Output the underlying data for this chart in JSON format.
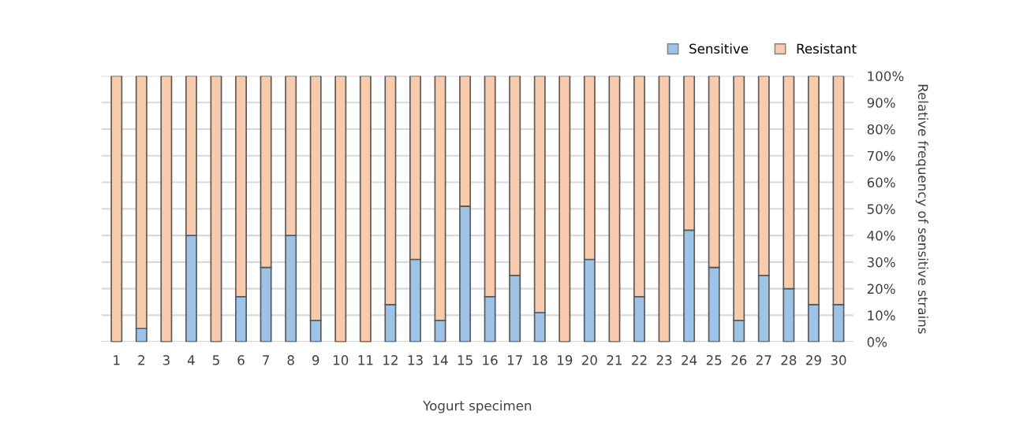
{
  "chart_data": {
    "type": "bar",
    "stacked": true,
    "categories": [
      "1",
      "2",
      "3",
      "4",
      "5",
      "6",
      "7",
      "8",
      "9",
      "10",
      "11",
      "12",
      "13",
      "14",
      "15",
      "16",
      "17",
      "18",
      "19",
      "20",
      "21",
      "22",
      "23",
      "24",
      "25",
      "26",
      "27",
      "28",
      "29",
      "30"
    ],
    "series": [
      {
        "name": "Sensitive",
        "color": "#9dc3e6",
        "values": [
          0,
          5,
          0,
          40,
          0,
          17,
          28,
          40,
          8,
          0,
          0,
          14,
          31,
          8,
          51,
          17,
          25,
          11,
          0,
          31,
          0,
          17,
          0,
          42,
          28,
          8,
          25,
          20,
          14,
          14
        ]
      },
      {
        "name": "Resistant",
        "color": "#f8cbad",
        "values": [
          100,
          95,
          100,
          60,
          100,
          83,
          72,
          60,
          92,
          100,
          100,
          86,
          69,
          92,
          49,
          83,
          75,
          89,
          100,
          69,
          100,
          83,
          100,
          58,
          72,
          92,
          75,
          80,
          86,
          86
        ]
      }
    ],
    "xlabel": "Yogurt specimen",
    "ylabel": "Relative frequency of sensitive strains",
    "ylim": [
      0,
      100
    ],
    "yticks": [
      {
        "value": 0,
        "label": "0%"
      },
      {
        "value": 10,
        "label": "10%"
      },
      {
        "value": 20,
        "label": "20%"
      },
      {
        "value": 30,
        "label": "30%"
      },
      {
        "value": 40,
        "label": "40%"
      },
      {
        "value": 50,
        "label": "50%"
      },
      {
        "value": 60,
        "label": "60%"
      },
      {
        "value": 70,
        "label": "70%"
      },
      {
        "value": 80,
        "label": "80%"
      },
      {
        "value": 90,
        "label": "90%"
      },
      {
        "value": 100,
        "label": "100%"
      }
    ],
    "grid": "y",
    "legend": "top right"
  }
}
